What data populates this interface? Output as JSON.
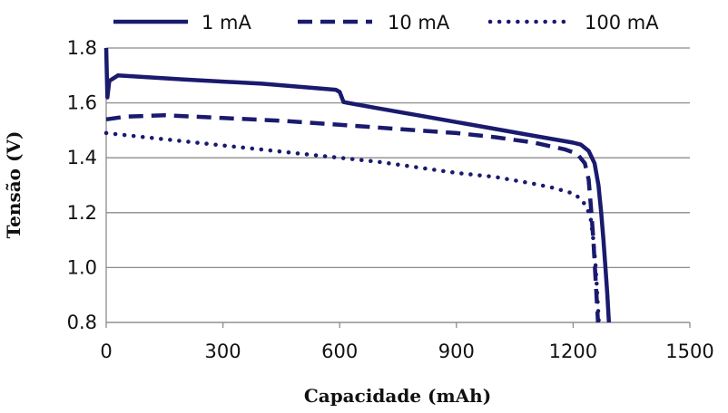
{
  "chart_data": {
    "type": "line",
    "xlabel": "Capacidade (mAh)",
    "ylabel": "Tensão (V)",
    "xlim": [
      0,
      1500
    ],
    "ylim": [
      0.8,
      1.8
    ],
    "xticks": [
      "0",
      "300",
      "600",
      "900",
      "1200",
      "1500"
    ],
    "yticks": [
      "0.8",
      "1.0",
      "1.2",
      "1.4",
      "1.6",
      "1.8"
    ],
    "grid": "horizontal",
    "legend_position": "top",
    "line_color": "#1a1a6e",
    "series": [
      {
        "name": "1 mA",
        "style": "solid",
        "points": [
          [
            0,
            1.8
          ],
          [
            3,
            1.62
          ],
          [
            8,
            1.68
          ],
          [
            30,
            1.7
          ],
          [
            200,
            1.685
          ],
          [
            400,
            1.67
          ],
          [
            590,
            1.648
          ],
          [
            600,
            1.64
          ],
          [
            610,
            1.603
          ],
          [
            700,
            1.58
          ],
          [
            800,
            1.555
          ],
          [
            900,
            1.53
          ],
          [
            1000,
            1.505
          ],
          [
            1100,
            1.48
          ],
          [
            1200,
            1.455
          ],
          [
            1220,
            1.448
          ],
          [
            1240,
            1.425
          ],
          [
            1255,
            1.38
          ],
          [
            1265,
            1.3
          ],
          [
            1272,
            1.2
          ],
          [
            1278,
            1.1
          ],
          [
            1283,
            1.0
          ],
          [
            1288,
            0.9
          ],
          [
            1292,
            0.8
          ]
        ]
      },
      {
        "name": "10 mA",
        "style": "dashed",
        "points": [
          [
            0,
            1.54
          ],
          [
            50,
            1.55
          ],
          [
            150,
            1.555
          ],
          [
            300,
            1.545
          ],
          [
            450,
            1.535
          ],
          [
            600,
            1.52
          ],
          [
            750,
            1.505
          ],
          [
            900,
            1.49
          ],
          [
            1000,
            1.475
          ],
          [
            1100,
            1.455
          ],
          [
            1180,
            1.43
          ],
          [
            1210,
            1.415
          ],
          [
            1230,
            1.38
          ],
          [
            1240,
            1.32
          ],
          [
            1247,
            1.2
          ],
          [
            1252,
            1.1
          ],
          [
            1256,
            1.0
          ],
          [
            1260,
            0.9
          ],
          [
            1264,
            0.8
          ]
        ]
      },
      {
        "name": "100 mA",
        "style": "dotted",
        "points": [
          [
            0,
            1.49
          ],
          [
            100,
            1.475
          ],
          [
            200,
            1.46
          ],
          [
            300,
            1.445
          ],
          [
            400,
            1.43
          ],
          [
            500,
            1.415
          ],
          [
            600,
            1.4
          ],
          [
            700,
            1.385
          ],
          [
            800,
            1.365
          ],
          [
            900,
            1.345
          ],
          [
            1000,
            1.33
          ],
          [
            1100,
            1.305
          ],
          [
            1150,
            1.29
          ],
          [
            1200,
            1.27
          ],
          [
            1220,
            1.25
          ],
          [
            1235,
            1.22
          ],
          [
            1245,
            1.18
          ],
          [
            1252,
            1.1
          ],
          [
            1258,
            1.0
          ],
          [
            1262,
            0.9
          ],
          [
            1266,
            0.8
          ]
        ]
      }
    ]
  }
}
